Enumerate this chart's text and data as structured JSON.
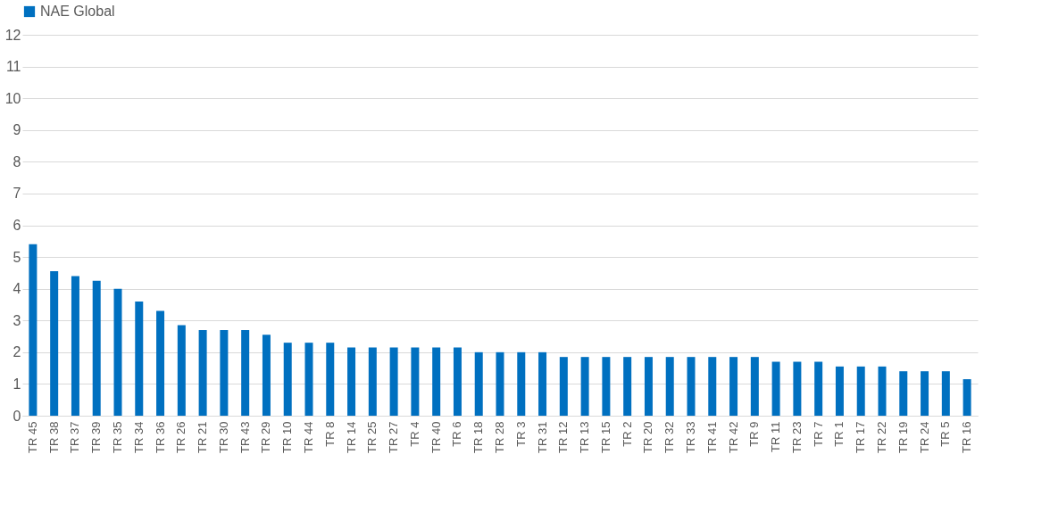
{
  "chart_data": {
    "type": "bar",
    "categories": [
      "TR 45",
      "TR 38",
      "TR 37",
      "TR 39",
      "TR 35",
      "TR 34",
      "TR 36",
      "TR 26",
      "TR 21",
      "TR 30",
      "TR 43",
      "TR 29",
      "TR 10",
      "TR 44",
      "TR 8",
      "TR 14",
      "TR 25",
      "TR 27",
      "TR 4",
      "TR 40",
      "TR 6",
      "TR 18",
      "TR 28",
      "TR 3",
      "TR 31",
      "TR 12",
      "TR 13",
      "TR 15",
      "TR 2",
      "TR 20",
      "TR 32",
      "TR 33",
      "TR 41",
      "TR 42",
      "TR 9",
      "TR 11",
      "TR 23",
      "TR 7",
      "TR 1",
      "TR 17",
      "TR 22",
      "TR 19",
      "TR 24",
      "TR 5",
      "TR 16"
    ],
    "series": [
      {
        "name": "NAE Global",
        "color": "#0070c0",
        "values": [
          5.4,
          4.55,
          4.4,
          4.25,
          4.0,
          3.6,
          3.3,
          2.85,
          2.7,
          2.7,
          2.7,
          2.55,
          2.3,
          2.3,
          2.3,
          2.15,
          2.15,
          2.15,
          2.15,
          2.15,
          2.15,
          2.0,
          2.0,
          2.0,
          2.0,
          1.85,
          1.85,
          1.85,
          1.85,
          1.85,
          1.85,
          1.85,
          1.85,
          1.85,
          1.85,
          1.7,
          1.7,
          1.7,
          1.55,
          1.55,
          1.55,
          1.4,
          1.4,
          1.4,
          1.15
        ]
      }
    ],
    "ylim": [
      0,
      12
    ],
    "yticks": [
      0,
      1,
      2,
      3,
      4,
      5,
      6,
      7,
      8,
      9,
      10,
      11,
      12
    ],
    "grid": "y",
    "legend": "top"
  }
}
